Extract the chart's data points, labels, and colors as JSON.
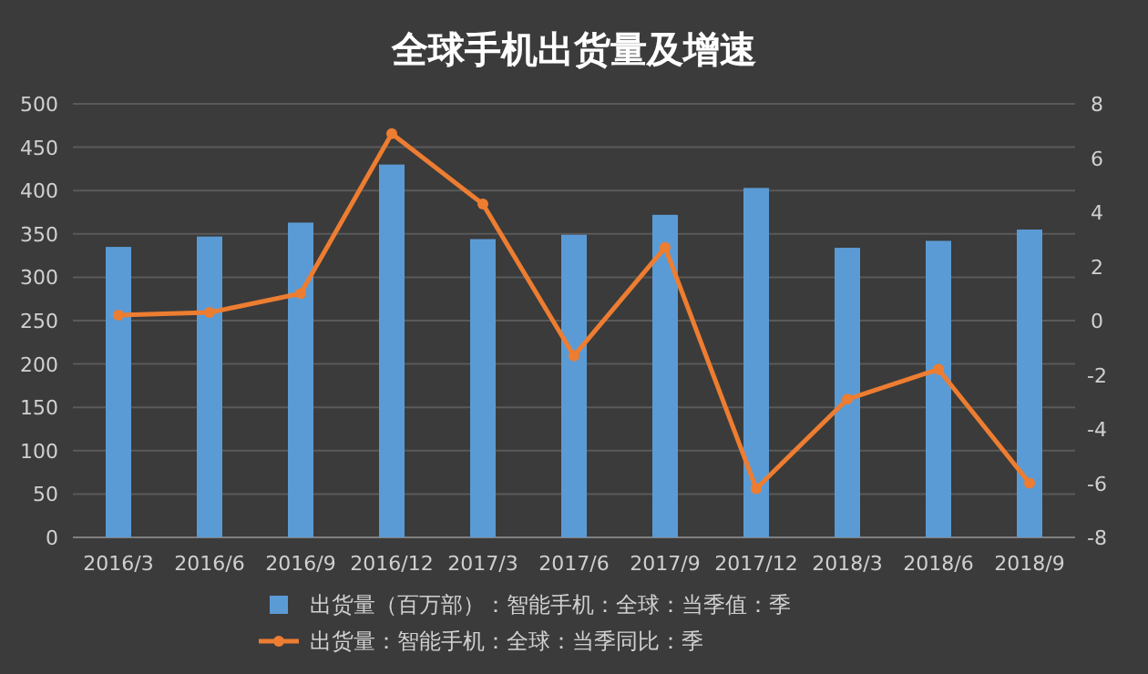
{
  "chart_data": {
    "type": "bar",
    "title": "全球手机出货量及增速",
    "categories": [
      "2016/3",
      "2016/6",
      "2016/9",
      "2016/12",
      "2017/3",
      "2017/6",
      "2017/9",
      "2017/12",
      "2018/3",
      "2018/6",
      "2018/9"
    ],
    "series": [
      {
        "name": "出货量（百万部）：智能手机：全球：当季值：季",
        "color": "#5b9bd5",
        "values": [
          335,
          347,
          363,
          430,
          344,
          349,
          372,
          403,
          334,
          342,
          355
        ]
      },
      {
        "name": "出货量：智能手机：全球：当季同比：季",
        "type": "line",
        "axis": "y2",
        "color": "#ed7d31",
        "values": [
          0.2,
          0.3,
          1.0,
          6.9,
          4.3,
          -1.3,
          2.7,
          -6.2,
          -2.9,
          -1.8,
          -6.0
        ]
      }
    ],
    "ylim": [
      0,
      500
    ],
    "yticks": [
      0,
      50,
      100,
      150,
      200,
      250,
      300,
      350,
      400,
      450,
      500
    ],
    "y2lim": [
      -8,
      8
    ],
    "y2ticks": [
      -8,
      -6,
      -4,
      -2,
      0,
      2,
      4,
      6,
      8
    ],
    "grid": "y",
    "legend": "bottom",
    "marker": "circle",
    "line_style": "solid"
  }
}
